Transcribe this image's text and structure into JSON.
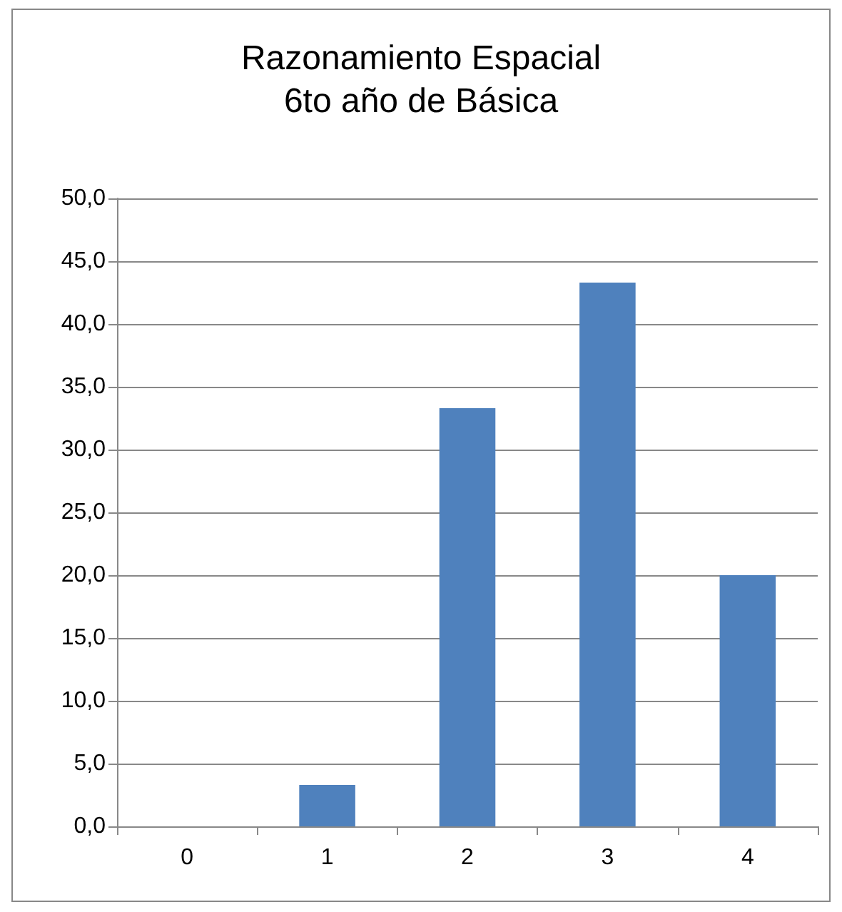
{
  "chart_data": {
    "type": "bar",
    "title": "Razonamiento Espacial\n6to año de Básica",
    "categories": [
      "0",
      "1",
      "2",
      "3",
      "4"
    ],
    "values": [
      0,
      3.3,
      33.3,
      43.3,
      20.0
    ],
    "color": "#4f81bd",
    "ylim": [
      0,
      50
    ],
    "yticks": [
      {
        "value": 0,
        "label": "0,0"
      },
      {
        "value": 5,
        "label": "5,0"
      },
      {
        "value": 10,
        "label": "10,0"
      },
      {
        "value": 15,
        "label": "15,0"
      },
      {
        "value": 20,
        "label": "20,0"
      },
      {
        "value": 25,
        "label": "25,0"
      },
      {
        "value": 30,
        "label": "30,0"
      },
      {
        "value": 35,
        "label": "35,0"
      },
      {
        "value": 40,
        "label": "40,0"
      },
      {
        "value": 45,
        "label": "45,0"
      },
      {
        "value": 50,
        "label": "50,0"
      }
    ],
    "grid": "y"
  }
}
